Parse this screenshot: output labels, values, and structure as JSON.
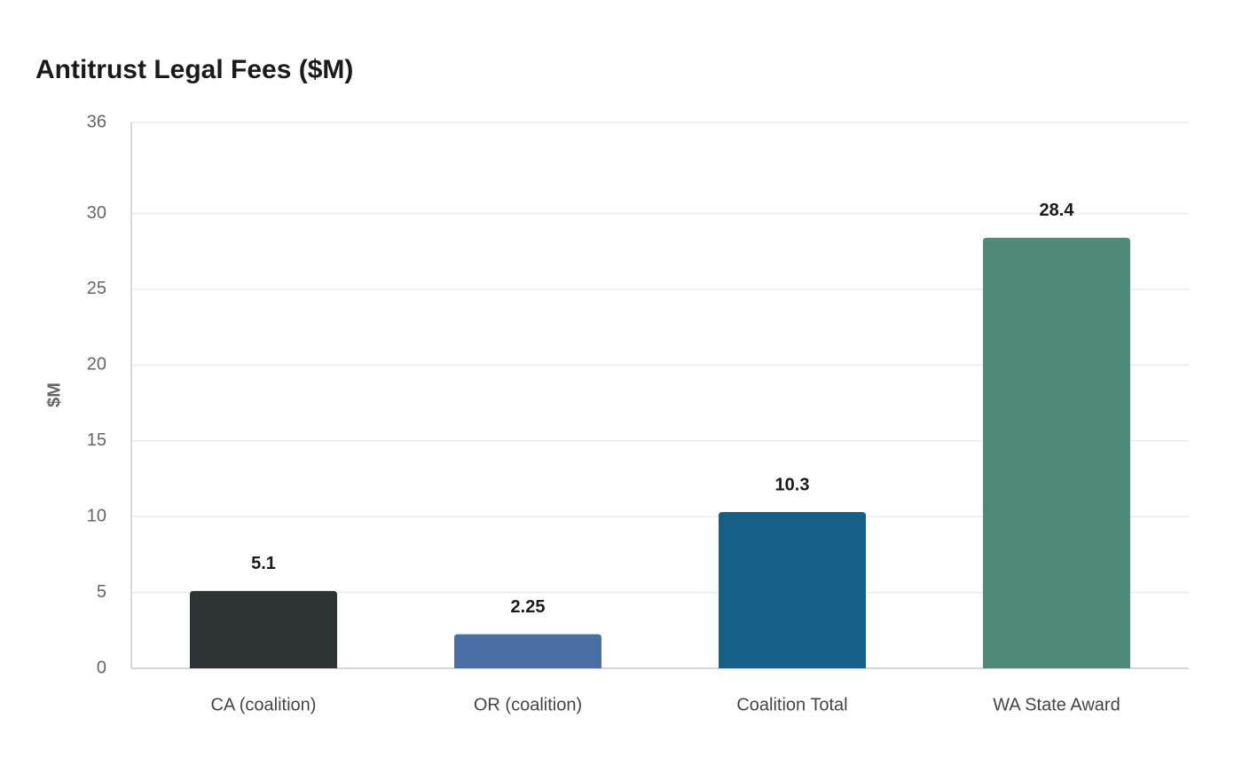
{
  "chart_data": {
    "type": "bar",
    "title": "Antitrust Legal Fees ($M)",
    "y_label": "$M",
    "categories": [
      "CA (coalition)",
      "OR (coalition)",
      "Coalition Total",
      "WA State Award"
    ],
    "values": [
      5.1,
      2.25,
      10.3,
      28.4
    ],
    "colors": [
      "#2d3436",
      "#4a6fa5",
      "#166088",
      "#4f8a7b"
    ],
    "ylim": [
      0,
      36
    ],
    "yticks": [
      0,
      5,
      10,
      15,
      20,
      25,
      30,
      36
    ],
    "grid": true
  }
}
